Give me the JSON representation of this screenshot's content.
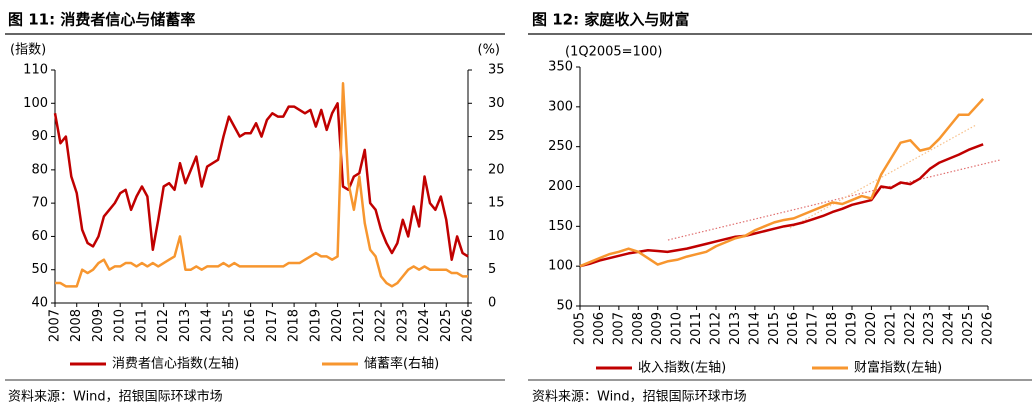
{
  "chart_data": [
    {
      "type": "line",
      "title": "图 11: 消费者信心与储蓄率",
      "y_label": "(指数)",
      "y2_label": "(%)",
      "source": "资料来源：Wind，招银国际环球市场",
      "x": [
        2007,
        2007.25,
        2007.5,
        2007.75,
        2008,
        2008.25,
        2008.5,
        2008.75,
        2009,
        2009.25,
        2009.5,
        2009.75,
        2010,
        2010.25,
        2010.5,
        2010.75,
        2011,
        2011.25,
        2011.5,
        2011.75,
        2012,
        2012.25,
        2012.5,
        2012.75,
        2013,
        2013.25,
        2013.5,
        2013.75,
        2014,
        2014.25,
        2014.5,
        2014.75,
        2015,
        2015.25,
        2015.5,
        2015.75,
        2016,
        2016.25,
        2016.5,
        2016.75,
        2017,
        2017.25,
        2017.5,
        2017.75,
        2018,
        2018.25,
        2018.5,
        2018.75,
        2019,
        2019.25,
        2019.5,
        2019.75,
        2020,
        2020.25,
        2020.5,
        2020.75,
        2021,
        2021.25,
        2021.5,
        2021.75,
        2022,
        2022.25,
        2022.5,
        2022.75,
        2023,
        2023.25,
        2023.5,
        2023.75,
        2024,
        2024.25,
        2024.5,
        2024.75,
        2025,
        2025.25,
        2025.5,
        2025.75,
        2026
      ],
      "series": [
        {
          "name": "消费者信心指数(左轴)",
          "color": "#c00000",
          "values": [
            97,
            88,
            90,
            78,
            73,
            62,
            58,
            57,
            60,
            66,
            68,
            70,
            73,
            74,
            68,
            72,
            75,
            72,
            56,
            65,
            75,
            76,
            74,
            82,
            76,
            80,
            84,
            75,
            81,
            82,
            83,
            90,
            96,
            93,
            90,
            91,
            91,
            94,
            90,
            95,
            97,
            96,
            96,
            99,
            99,
            98,
            97,
            98,
            93,
            98,
            92,
            97,
            100,
            75,
            74,
            78,
            79,
            86,
            70,
            68,
            62,
            58,
            55,
            58,
            65,
            60,
            69,
            63,
            78,
            70,
            68,
            72,
            65,
            53,
            60,
            55,
            54
          ]
        },
        {
          "name": "储蓄率(右轴)",
          "color": "#f7962f",
          "axis": "y2",
          "values": [
            3,
            3,
            2.5,
            2.5,
            2.5,
            5,
            4.5,
            5,
            6,
            6.5,
            5,
            5.5,
            5.5,
            6,
            6,
            5.5,
            6,
            5.5,
            6,
            5.5,
            6,
            6.5,
            7,
            10,
            5,
            5,
            5.5,
            5,
            5.5,
            5.5,
            5.5,
            6,
            5.5,
            6,
            5.5,
            5.5,
            5.5,
            5.5,
            5.5,
            5.5,
            5.5,
            5.5,
            5.5,
            6,
            6,
            6,
            6.5,
            7,
            7.5,
            7,
            7,
            6.5,
            7,
            33,
            18,
            14,
            19,
            12,
            8,
            7,
            4,
            3,
            2.5,
            3,
            4,
            5,
            5.5,
            5,
            5.5,
            5,
            5,
            5,
            5,
            4.5,
            4.5,
            4,
            4
          ]
        }
      ],
      "xlim": [
        2007,
        2026
      ],
      "xticks": [
        2007,
        2008,
        2009,
        2010,
        2011,
        2012,
        2013,
        2014,
        2015,
        2016,
        2017,
        2018,
        2019,
        2020,
        2021,
        2022,
        2023,
        2024,
        2025,
        2026
      ],
      "ylim": [
        40,
        110
      ],
      "yticks": [
        40,
        50,
        60,
        70,
        80,
        90,
        100,
        110
      ],
      "y2lim": [
        0,
        35
      ],
      "y2ticks": [
        0,
        5,
        10,
        15,
        20,
        25,
        30,
        35
      ],
      "legend": "bottom"
    },
    {
      "type": "line",
      "title": "图 12: 家庭收入与财富",
      "y_label": "(1Q2005=100)",
      "source": "资料来源：Wind，招银国际环球市场",
      "x": [
        2005,
        2005.5,
        2006,
        2006.5,
        2007,
        2007.5,
        2008,
        2008.5,
        2009,
        2009.5,
        2010,
        2010.5,
        2011,
        2011.5,
        2012,
        2012.5,
        2013,
        2013.5,
        2014,
        2014.5,
        2015,
        2015.5,
        2016,
        2016.5,
        2017,
        2017.5,
        2018,
        2018.5,
        2019,
        2019.5,
        2020,
        2020.5,
        2021,
        2021.5,
        2022,
        2022.5,
        2023,
        2023.5,
        2024,
        2024.5,
        2025,
        2025.75
      ],
      "series": [
        {
          "name": "收入指数(左轴)",
          "color": "#c00000",
          "values": [
            100,
            103,
            107,
            110,
            113,
            116,
            118,
            120,
            119,
            118,
            120,
            122,
            125,
            128,
            131,
            134,
            137,
            138,
            141,
            144,
            147,
            150,
            152,
            155,
            159,
            163,
            168,
            172,
            177,
            180,
            183,
            200,
            198,
            205,
            203,
            210,
            222,
            230,
            235,
            240,
            246,
            253
          ]
        },
        {
          "name": "财富指数(左轴)",
          "color": "#f7962f",
          "values": [
            100,
            105,
            110,
            115,
            118,
            122,
            118,
            110,
            102,
            106,
            108,
            112,
            115,
            118,
            125,
            130,
            135,
            138,
            145,
            150,
            155,
            158,
            160,
            165,
            170,
            175,
            180,
            178,
            183,
            188,
            185,
            215,
            235,
            255,
            258,
            245,
            248,
            260,
            275,
            290,
            290,
            310
          ]
        }
      ],
      "xlim": [
        2005,
        2026
      ],
      "xticks": [
        2005,
        2006,
        2007,
        2008,
        2009,
        2010,
        2011,
        2012,
        2013,
        2014,
        2015,
        2016,
        2017,
        2018,
        2019,
        2020,
        2021,
        2022,
        2023,
        2024,
        2025,
        2026
      ],
      "ylim": [
        50,
        350
      ],
      "yticks": [
        50,
        100,
        150,
        200,
        250,
        300,
        350
      ],
      "legend": "bottom"
    }
  ]
}
